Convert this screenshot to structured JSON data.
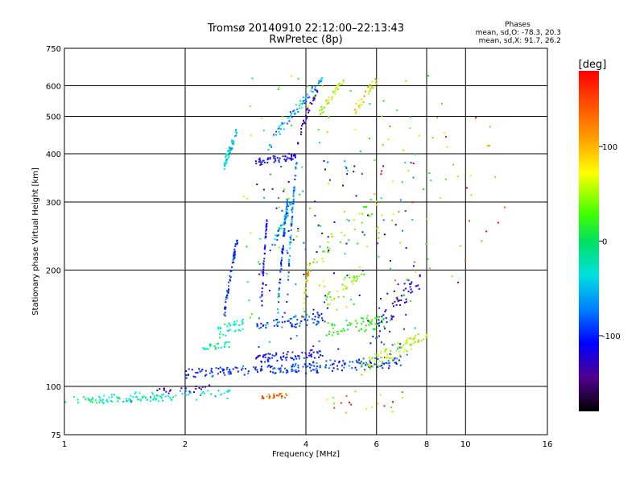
{
  "chart_data": {
    "type": "scatter",
    "title": "Tromsø 20140910 22:12:00–22:13:43",
    "subtitle": "RwPretec (8p)",
    "xlabel": "Frequency [MHz]",
    "ylabel": "Stationary phase Virtual Height [km]",
    "x_scale": "log",
    "y_scale": "log",
    "xlim": [
      1,
      16
    ],
    "ylim": [
      75,
      750
    ],
    "x_ticks": [
      1,
      2,
      4,
      6,
      8,
      10,
      16
    ],
    "y_ticks": [
      75,
      100,
      200,
      300,
      400,
      500,
      600,
      750
    ],
    "grid": true,
    "phases_box": {
      "heading": "Phases",
      "line1": "mean, sd,O: -78.3, 20.3",
      "line2": "mean, sd,X: 91.7, 26.2"
    },
    "colorbar": {
      "label": "[deg]",
      "range": [
        -180,
        180
      ],
      "ticks": [
        100,
        0,
        -100
      ]
    },
    "traces": [
      {
        "x0": 1.0,
        "x1": 1.9,
        "y0": 92,
        "y1": 94,
        "phase": -10,
        "n": 70,
        "jit": 2
      },
      {
        "x0": 1.2,
        "x1": 2.6,
        "y0": 93,
        "y1": 96,
        "phase": -40,
        "n": 50,
        "jit": 3
      },
      {
        "x0": 3.1,
        "x1": 3.6,
        "y0": 94,
        "y1": 95,
        "phase": 150,
        "n": 25,
        "jit": 1.5
      },
      {
        "x0": 2.0,
        "x1": 4.0,
        "y0": 108,
        "y1": 112,
        "phase": -95,
        "n": 110,
        "jit": 3
      },
      {
        "x0": 4.0,
        "x1": 7.0,
        "y0": 112,
        "y1": 116,
        "phase": -90,
        "n": 100,
        "jit": 4
      },
      {
        "x0": 2.2,
        "x1": 2.6,
        "y0": 125,
        "y1": 128,
        "phase": -10,
        "n": 25,
        "jit": 3
      },
      {
        "x0": 3.0,
        "x1": 4.4,
        "y0": 118,
        "y1": 122,
        "phase": -110,
        "n": 75,
        "jit": 3
      },
      {
        "x0": 5.5,
        "x1": 8.0,
        "y0": 112,
        "y1": 135,
        "phase": 90,
        "n": 80,
        "jit": 5
      },
      {
        "x0": 2.4,
        "x1": 2.8,
        "y0": 138,
        "y1": 145,
        "phase": -20,
        "n": 35,
        "jit": 5
      },
      {
        "x0": 3.0,
        "x1": 4.5,
        "y0": 145,
        "y1": 150,
        "phase": -85,
        "n": 70,
        "jit": 5
      },
      {
        "x0": 4.5,
        "x1": 6.5,
        "y0": 140,
        "y1": 148,
        "phase": 40,
        "n": 60,
        "jit": 6
      },
      {
        "x0": 6.0,
        "x1": 7.8,
        "y0": 140,
        "y1": 190,
        "phase": -140,
        "n": 50,
        "jit": 8
      },
      {
        "x0": 2.5,
        "x1": 2.7,
        "y0": 150,
        "y1": 240,
        "phase": -100,
        "n": 55,
        "jit": 6
      },
      {
        "x0": 3.1,
        "x1": 3.2,
        "y0": 160,
        "y1": 270,
        "phase": -115,
        "n": 45,
        "jit": 6
      },
      {
        "x0": 3.4,
        "x1": 3.6,
        "y0": 150,
        "y1": 300,
        "phase": -85,
        "n": 70,
        "jit": 8
      },
      {
        "x0": 3.6,
        "x1": 3.8,
        "y0": 170,
        "y1": 390,
        "phase": -70,
        "n": 60,
        "jit": 10
      },
      {
        "x0": 3.9,
        "x1": 4.1,
        "y0": 150,
        "y1": 210,
        "phase": 120,
        "n": 25,
        "jit": 6
      },
      {
        "x0": 4.5,
        "x1": 5.5,
        "y0": 165,
        "y1": 200,
        "phase": 80,
        "n": 35,
        "jit": 8
      },
      {
        "x0": 2.5,
        "x1": 2.7,
        "y0": 370,
        "y1": 460,
        "phase": -45,
        "n": 60,
        "jit": 12
      },
      {
        "x0": 3.0,
        "x1": 3.8,
        "y0": 380,
        "y1": 395,
        "phase": -120,
        "n": 50,
        "jit": 8
      },
      {
        "x0": 3.2,
        "x1": 4.4,
        "y0": 410,
        "y1": 620,
        "phase": -60,
        "n": 70,
        "jit": 15
      },
      {
        "x0": 3.8,
        "x1": 4.3,
        "y0": 430,
        "y1": 600,
        "phase": -150,
        "n": 30,
        "jit": 15
      },
      {
        "x0": 4.3,
        "x1": 5.0,
        "y0": 500,
        "y1": 630,
        "phase": 90,
        "n": 35,
        "jit": 15
      },
      {
        "x0": 5.3,
        "x1": 6.0,
        "y0": 520,
        "y1": 620,
        "phase": 110,
        "n": 30,
        "jit": 15
      },
      {
        "x0": 3.3,
        "x1": 3.7,
        "y0": 230,
        "y1": 300,
        "phase": -60,
        "n": 35,
        "jit": 8
      },
      {
        "x0": 4.0,
        "x1": 6.0,
        "y0": 200,
        "y1": 300,
        "phase": 70,
        "n": 35,
        "jit": 15
      },
      {
        "x0": 1.7,
        "x1": 2.3,
        "y0": 97,
        "y1": 99,
        "phase": -150,
        "n": 20,
        "jit": 2
      }
    ],
    "scatter": [
      {
        "x0": 2.8,
        "x1": 8.5,
        "y0": 150,
        "y1": 650,
        "phase": 60,
        "n": 110
      },
      {
        "x0": 3.0,
        "x1": 7.5,
        "y0": 120,
        "y1": 400,
        "phase": -120,
        "n": 120
      },
      {
        "x0": 6.0,
        "x1": 13.0,
        "y0": 180,
        "y1": 650,
        "phase": 120,
        "n": 45
      },
      {
        "x0": 4.5,
        "x1": 7.0,
        "y0": 85,
        "y1": 98,
        "phase": 130,
        "n": 20
      }
    ]
  }
}
